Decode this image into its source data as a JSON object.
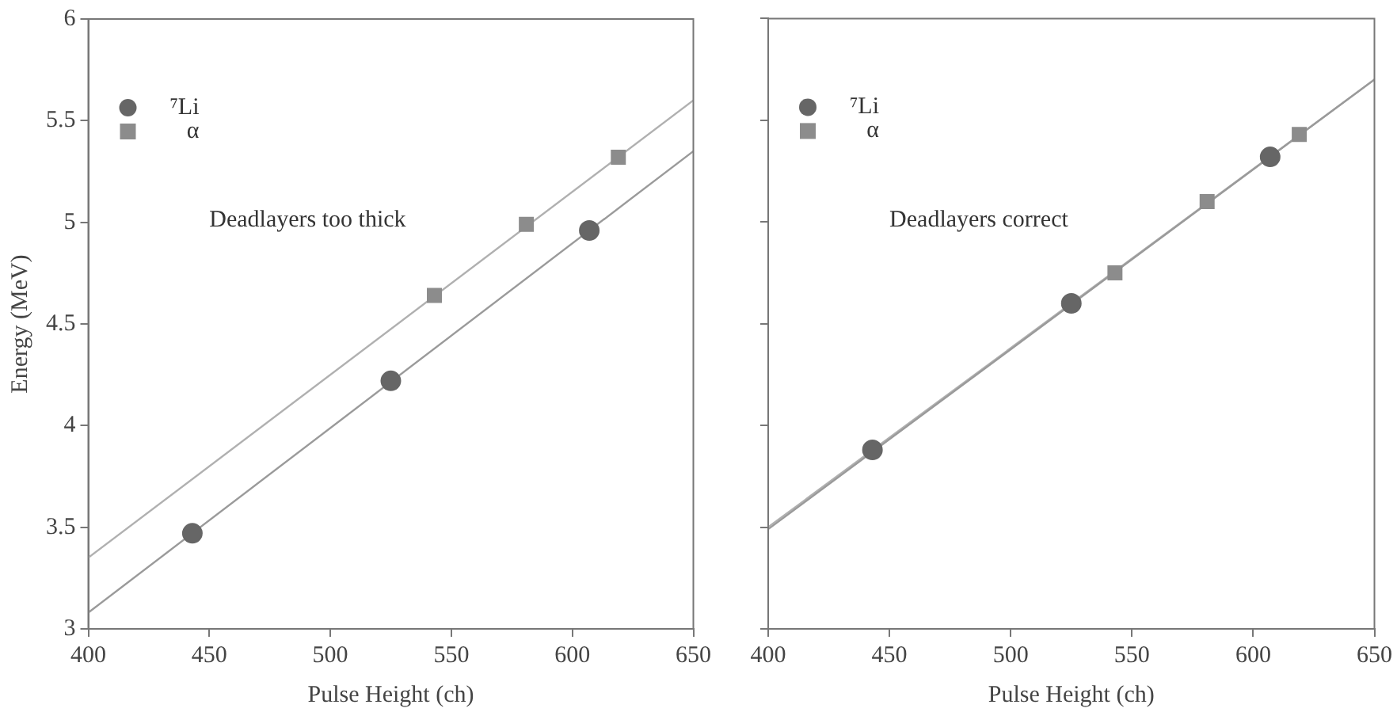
{
  "chart_data": [
    {
      "type": "scatter",
      "ylabel": "Energy (MeV)",
      "xlabel": "Pulse Height (ch)",
      "xlim": [
        400,
        650
      ],
      "xticks": [
        400,
        450,
        500,
        550,
        600,
        650
      ],
      "ylim": [
        3,
        6
      ],
      "yticks": [
        3,
        3.5,
        4,
        4.5,
        5,
        5.5,
        6
      ],
      "grid": false,
      "legend": "top left",
      "annotations": [
        "Deadlayers too thick"
      ],
      "series": [
        {
          "name": "⁷Li",
          "type": "scatter",
          "marker": "circle",
          "color": "#666666",
          "x": [
            443,
            525,
            607
          ],
          "values": [
            3.47,
            4.22,
            4.96
          ]
        },
        {
          "name": "α",
          "type": "scatter",
          "marker": "square",
          "color": "#8c8c8c",
          "x": [
            543,
            581,
            619
          ],
          "values": [
            4.64,
            4.99,
            5.32
          ]
        },
        {
          "type": "line",
          "marker": "none",
          "color": "#9a9a9a",
          "x": [
            400,
            650
          ],
          "values": [
            3.08,
            5.35
          ]
        },
        {
          "type": "line",
          "marker": "none",
          "color": "#b0b0b0",
          "x": [
            400,
            650
          ],
          "values": [
            3.35,
            5.6
          ]
        }
      ]
    },
    {
      "type": "scatter",
      "xlabel": "Pulse Height (ch)",
      "xlim": [
        400,
        650
      ],
      "xticks": [
        400,
        450,
        500,
        550,
        600,
        650
      ],
      "ylim": [
        3,
        6
      ],
      "yticks": [
        3,
        3.5,
        4,
        4.5,
        5,
        5.5,
        6
      ],
      "tick_labels": "x",
      "grid": false,
      "legend": "top left",
      "annotations": [
        "Deadlayers correct"
      ],
      "series": [
        {
          "name": "⁷Li",
          "type": "scatter",
          "marker": "circle",
          "color": "#666666",
          "x": [
            443,
            525,
            607
          ],
          "values": [
            3.88,
            4.6,
            5.32
          ]
        },
        {
          "name": "α",
          "type": "scatter",
          "marker": "square",
          "color": "#8c8c8c",
          "x": [
            543,
            581,
            619
          ],
          "values": [
            4.75,
            5.1,
            5.43
          ]
        },
        {
          "type": "line",
          "marker": "none",
          "color": "#9a9a9a",
          "x": [
            400,
            650
          ],
          "values": [
            3.49,
            5.7
          ]
        },
        {
          "type": "line",
          "marker": "none",
          "color": "#b0b0b0",
          "x": [
            400,
            650
          ],
          "values": [
            3.5,
            5.7
          ]
        }
      ]
    }
  ]
}
